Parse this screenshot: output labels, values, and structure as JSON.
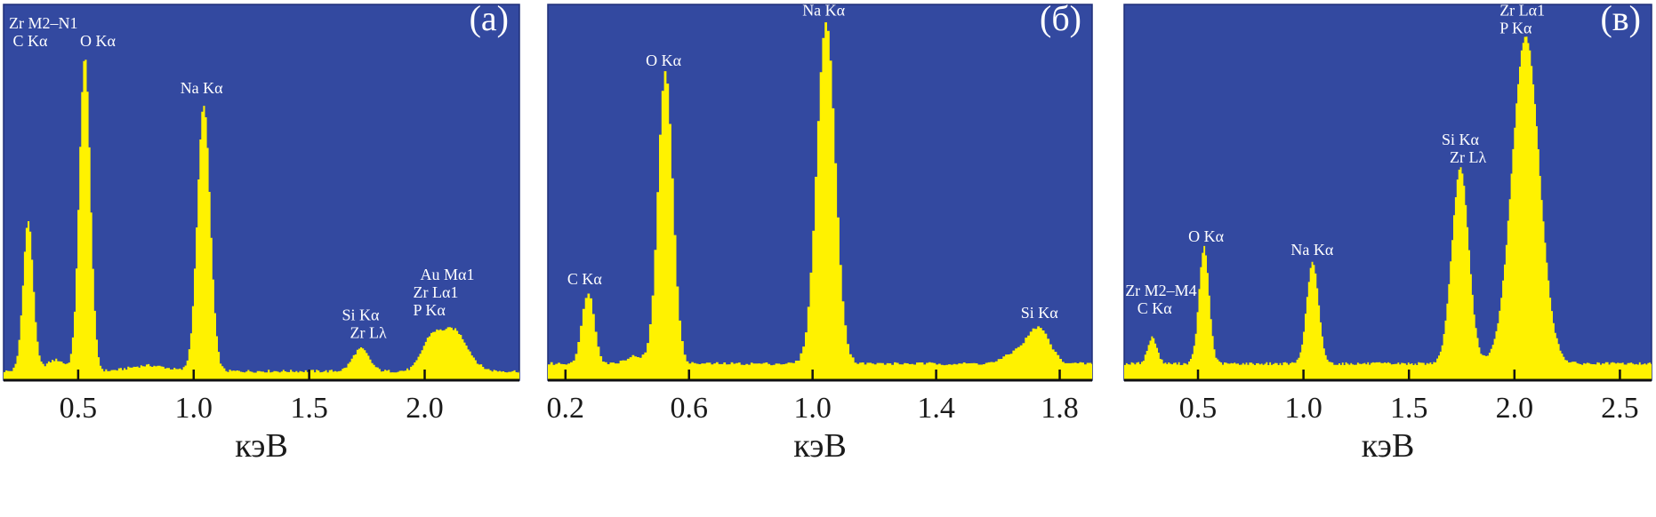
{
  "chart_data": [
    {
      "type": "area",
      "title": "(а)",
      "xlabel": "кэВ",
      "ylabel": "",
      "xlim": [
        0.177,
        2.41
      ],
      "ylim": [
        0,
        1
      ],
      "xticks": [
        0.5,
        1.0,
        1.5,
        2.0
      ],
      "xtick_labels": [
        "0.5",
        "1.0",
        "1.5",
        "2.0"
      ],
      "colors": {
        "background": "#3349a0",
        "spectrum": "#fff200"
      },
      "baseline": 0.02,
      "peaks": [
        {
          "energy": 0.28,
          "intensity": 0.4,
          "width": 0.022
        },
        {
          "energy": 0.4,
          "intensity": 0.03,
          "width": 0.04
        },
        {
          "energy": 0.525,
          "intensity": 0.84,
          "width": 0.024
        },
        {
          "energy": 0.8,
          "intensity": 0.015,
          "width": 0.08
        },
        {
          "energy": 1.04,
          "intensity": 0.71,
          "width": 0.028
        },
        {
          "energy": 1.72,
          "intensity": 0.06,
          "width": 0.035
        },
        {
          "energy": 2.02,
          "intensity": 0.07,
          "width": 0.04
        },
        {
          "energy": 2.12,
          "intensity": 0.11,
          "width": 0.06
        }
      ],
      "annotations": [
        {
          "lines": [
            "Zr M2–N1",
            " C Kα"
          ],
          "x": 0.2,
          "y": 0.936
        },
        {
          "lines": [
            "O Kα"
          ],
          "x": 0.508,
          "y": 0.889
        },
        {
          "lines": [
            "Na Kα"
          ],
          "x": 0.942,
          "y": 0.764
        },
        {
          "lines": [
            "Si Kα",
            "  Zr Lλ"
          ],
          "x": 1.642,
          "y": 0.16
        },
        {
          "lines": [
            "  Au Mα1",
            "Zr Lα1",
            "P Kα"
          ],
          "x": 1.95,
          "y": 0.267
        }
      ]
    },
    {
      "type": "area",
      "title": "(б)",
      "xlabel": "кэВ",
      "ylabel": "",
      "xlim": [
        0.143,
        1.905
      ],
      "ylim": [
        0,
        1
      ],
      "xticks": [
        0.2,
        0.6,
        1.0,
        1.4,
        1.8
      ],
      "xtick_labels": [
        "0.2",
        "0.6",
        "1.0",
        "1.4",
        "1.8"
      ],
      "colors": {
        "background": "#3349a0",
        "spectrum": "#fff200"
      },
      "baseline": 0.04,
      "peaks": [
        {
          "energy": 0.27,
          "intensity": 0.19,
          "width": 0.02
        },
        {
          "energy": 0.42,
          "intensity": 0.02,
          "width": 0.03
        },
        {
          "energy": 0.52,
          "intensity": 0.78,
          "width": 0.024
        },
        {
          "energy": 1.04,
          "intensity": 0.91,
          "width": 0.03
        },
        {
          "energy": 1.66,
          "intensity": 0.03,
          "width": 0.04
        },
        {
          "energy": 1.73,
          "intensity": 0.09,
          "width": 0.035
        }
      ],
      "annotations": [
        {
          "lines": [
            "C Kα"
          ],
          "x": 0.206,
          "y": 0.255
        },
        {
          "lines": [
            "O Kα"
          ],
          "x": 0.46,
          "y": 0.837
        },
        {
          "lines": [
            "Na Kα"
          ],
          "x": 0.967,
          "y": 0.97
        },
        {
          "lines": [
            "Si Kα"
          ],
          "x": 1.674,
          "y": 0.165
        }
      ]
    },
    {
      "type": "area",
      "title": "(в)",
      "xlabel": "кэВ",
      "ylabel": "",
      "xlim": [
        0.15,
        2.65
      ],
      "ylim": [
        0,
        1
      ],
      "xticks": [
        0.5,
        1.0,
        1.5,
        2.0,
        2.5
      ],
      "xtick_labels": [
        "0.5",
        "1.0",
        "1.5",
        "2.0",
        "2.5"
      ],
      "colors": {
        "background": "#3349a0",
        "spectrum": "#fff200"
      },
      "baseline": 0.04,
      "peaks": [
        {
          "energy": 0.28,
          "intensity": 0.07,
          "width": 0.022
        },
        {
          "energy": 0.525,
          "intensity": 0.31,
          "width": 0.024
        },
        {
          "energy": 1.04,
          "intensity": 0.27,
          "width": 0.028
        },
        {
          "energy": 1.74,
          "intensity": 0.52,
          "width": 0.04
        },
        {
          "energy": 2.05,
          "intensity": 0.87,
          "width": 0.065
        }
      ],
      "annotations": [
        {
          "lines": [
            "Zr M2–M4",
            "   C Kα"
          ],
          "x": 0.155,
          "y": 0.225
        },
        {
          "lines": [
            "O Kα"
          ],
          "x": 0.454,
          "y": 0.369
        },
        {
          "lines": [
            "Na Kα"
          ],
          "x": 0.94,
          "y": 0.333
        },
        {
          "lines": [
            "Si Kα",
            "  Zr Lλ"
          ],
          "x": 1.655,
          "y": 0.626
        },
        {
          "lines": [
            "Zr Lα1",
            "P Kα"
          ],
          "x": 1.93,
          "y": 0.97
        }
      ]
    }
  ]
}
